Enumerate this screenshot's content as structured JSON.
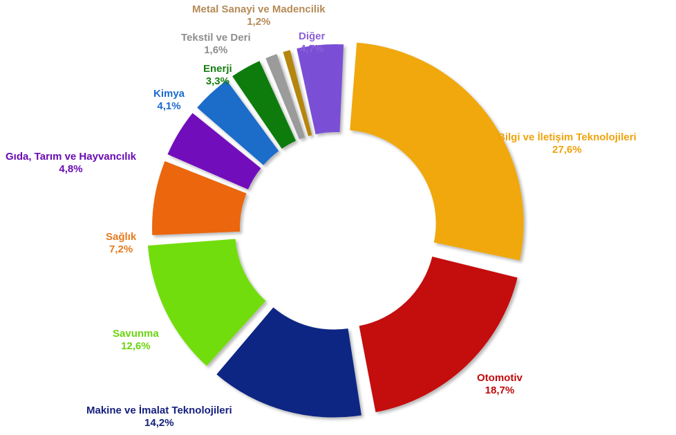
{
  "chart_data": {
    "type": "pie",
    "donut": true,
    "title": "",
    "slices": [
      {
        "label": "Bilgi ve İletişim Teknolojileri",
        "value_text": "27,6%",
        "value": 27.6,
        "color": "#F0A80E"
      },
      {
        "label": "Otomotiv",
        "value_text": "18,7%",
        "value": 18.7,
        "color": "#C4090A"
      },
      {
        "label": "Makine ve İmalat Teknolojileri",
        "value_text": "14,2%",
        "value": 14.2,
        "color": "#102683"
      },
      {
        "label": "Savunma",
        "value_text": "12,6%",
        "value": 12.6,
        "color": "#72DD0E"
      },
      {
        "label": "Sağlık",
        "value_text": "7,2%",
        "value": 7.2,
        "color": "#EB6611"
      },
      {
        "label": "Gıda, Tarım ve Hayvancılık",
        "value_text": "4,8%",
        "value": 4.8,
        "color": "#7207BC"
      },
      {
        "label": "Kimya",
        "value_text": "4,1%",
        "value": 4.1,
        "color": "#1C6CC9"
      },
      {
        "label": "Enerji",
        "value_text": "3,3%",
        "value": 3.3,
        "color": "#107C10"
      },
      {
        "label": "Tekstil ve Deri",
        "value_text": "1,6%",
        "value": 1.6,
        "color": "#9B9B9B"
      },
      {
        "label": "Metal Sanayi ve Madencilik",
        "value_text": "1,2%",
        "value": 1.2,
        "color": "#B5860F"
      },
      {
        "label": "Diğer",
        "value_text": "4,7%",
        "value": 4.7,
        "color": "#7A4FD6"
      }
    ],
    "label_colors": [
      "#EFA30C",
      "#BE0A0A",
      "#16207E",
      "#6BD40E",
      "#E67A1E",
      "#6A0BB2",
      "#1B6ACF",
      "#167F10",
      "#8E8E8E",
      "#B58A57",
      "#8C60D8"
    ]
  }
}
